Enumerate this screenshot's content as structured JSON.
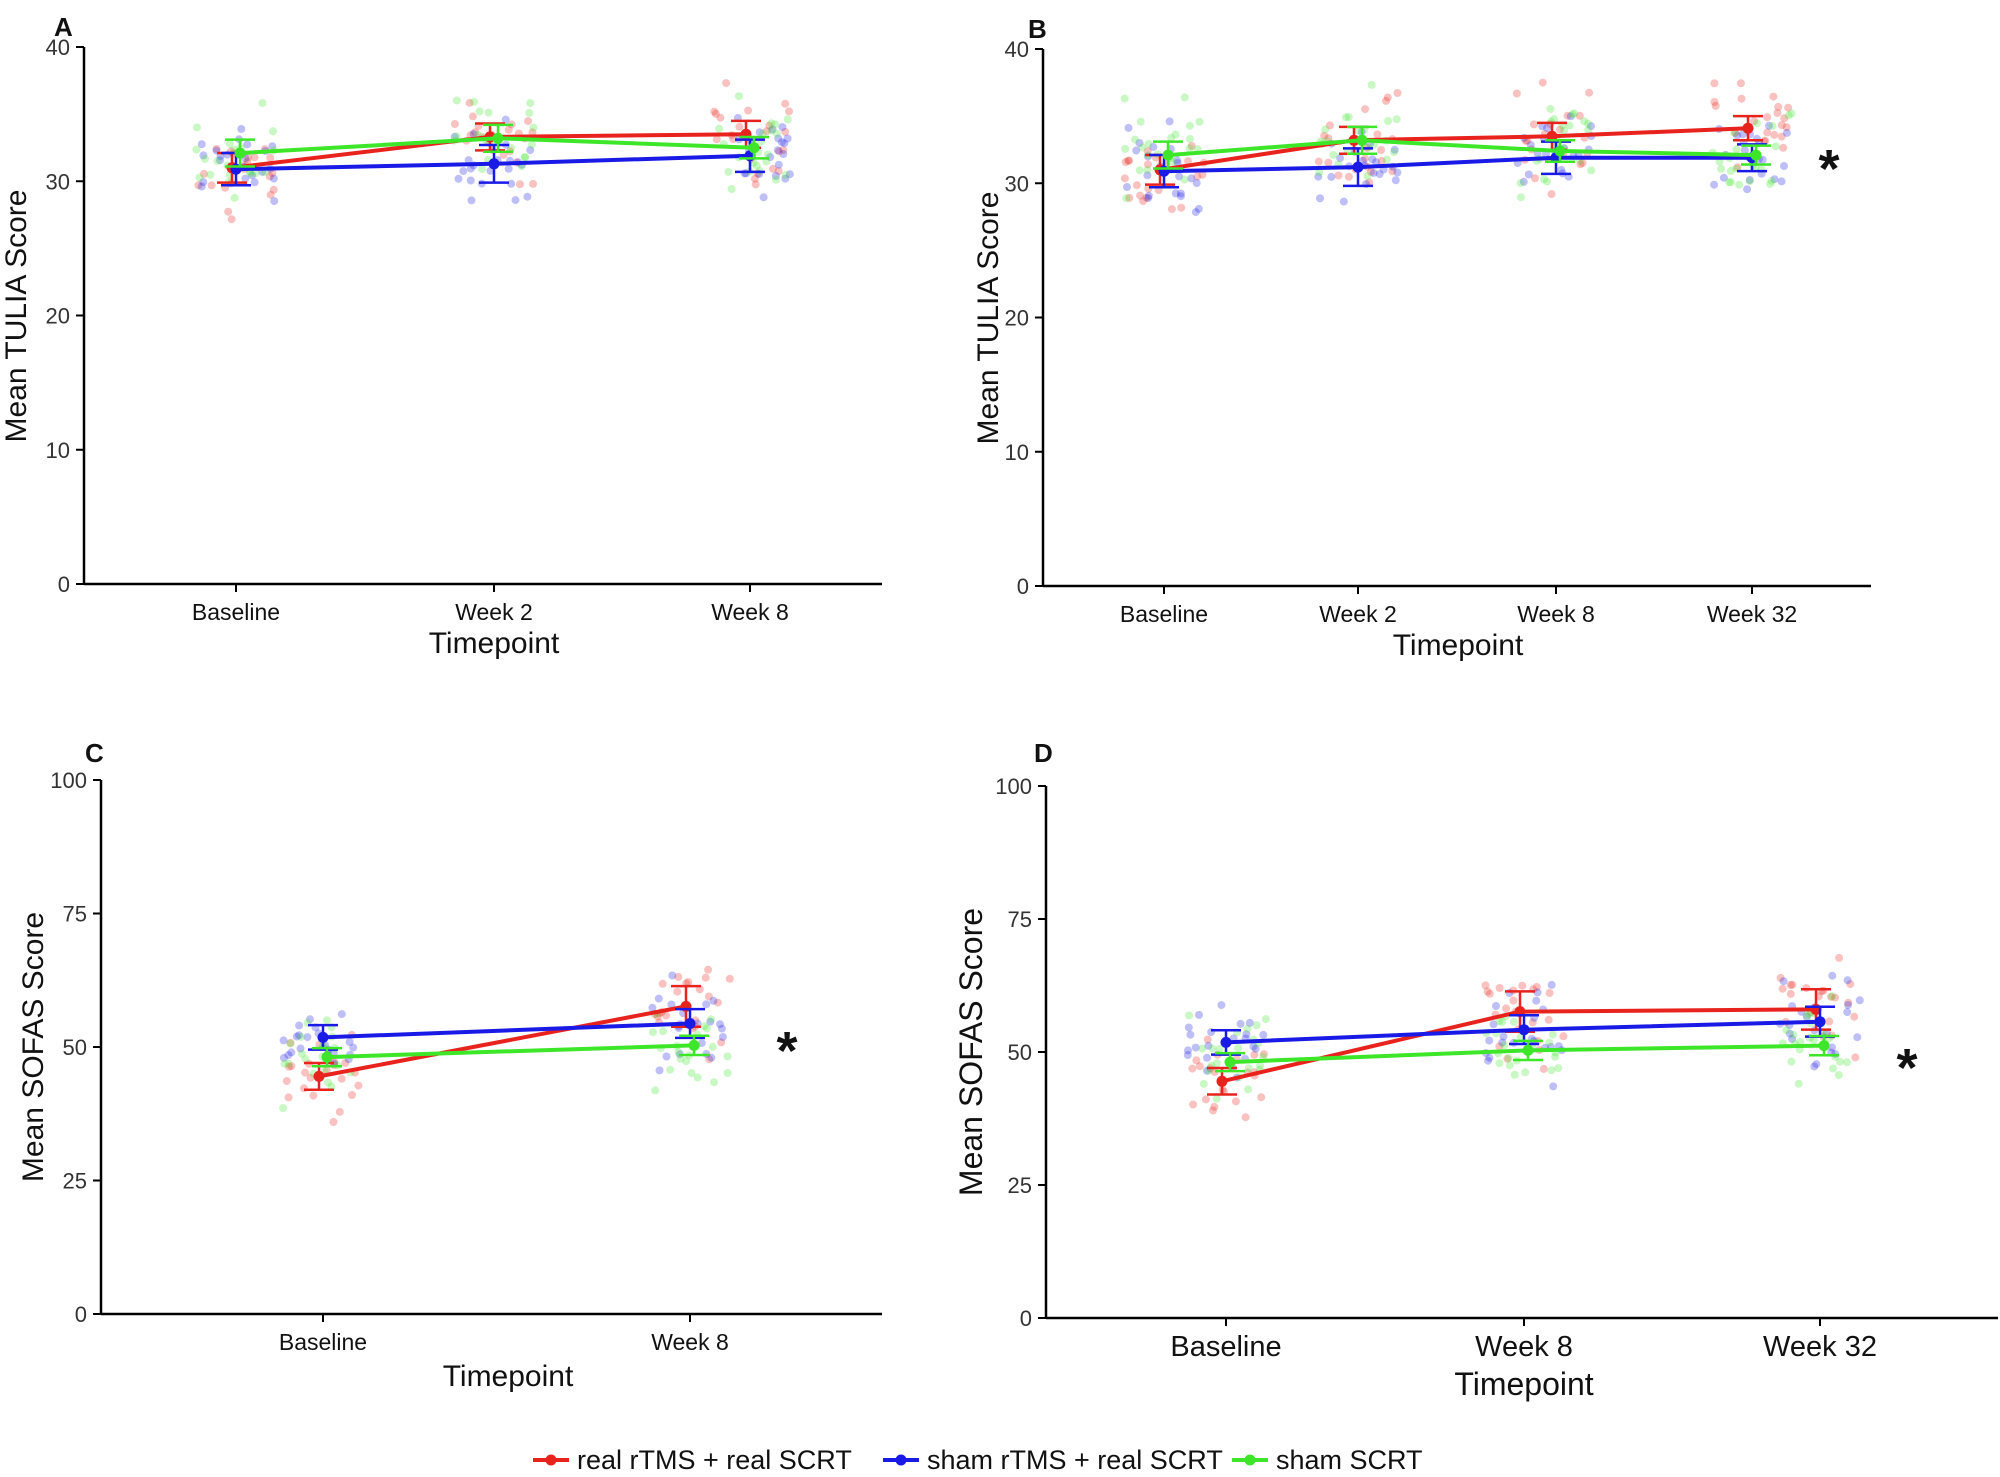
{
  "chart_data": [
    {
      "panel": "A",
      "type": "line",
      "xlabel": "Timepoint",
      "ylabel": "Mean TULIA Score",
      "ylim": [
        0,
        40
      ],
      "yticks": [
        "0",
        "10",
        "20",
        "30",
        "40"
      ],
      "categories": [
        "Baseline",
        "Week 2",
        "Week 8"
      ],
      "series": [
        {
          "name": "real rTMS + real SCRT",
          "color": "#e8231e",
          "values": [
            31.0,
            33.3,
            33.5
          ],
          "errors": [
            1.1,
            1.0,
            1.0
          ]
        },
        {
          "name": "sham rTMS + real SCRT",
          "color": "#1a1ae6",
          "values": [
            30.9,
            31.3,
            31.9
          ],
          "errors": [
            1.2,
            1.4,
            1.2
          ]
        },
        {
          "name": "sham SCRT",
          "color": "#3ee62a",
          "values": [
            32.1,
            33.2,
            32.5
          ],
          "errors": [
            1.0,
            1.0,
            0.8
          ]
        }
      ],
      "significance": ""
    },
    {
      "panel": "B",
      "type": "line",
      "xlabel": "Timepoint",
      "ylabel": "Mean TULIA Score",
      "ylim": [
        0,
        40
      ],
      "yticks": [
        "0",
        "10",
        "20",
        "30",
        "40"
      ],
      "categories": [
        "Baseline",
        "Week 2",
        "Week 8",
        "Week 32"
      ],
      "series": [
        {
          "name": "real rTMS + real SCRT",
          "color": "#e8231e",
          "values": [
            31.0,
            33.2,
            33.5,
            34.1
          ],
          "errors": [
            1.1,
            1.0,
            1.0,
            0.9
          ]
        },
        {
          "name": "sham rTMS + real SCRT",
          "color": "#1a1ae6",
          "values": [
            30.9,
            31.2,
            31.9,
            31.9
          ],
          "errors": [
            1.2,
            1.4,
            1.2,
            1.0
          ]
        },
        {
          "name": "sham SCRT",
          "color": "#3ee62a",
          "values": [
            32.1,
            33.2,
            32.4,
            32.1
          ],
          "errors": [
            1.0,
            1.0,
            0.8,
            0.7
          ]
        }
      ],
      "significance": "*"
    },
    {
      "panel": "C",
      "type": "line",
      "xlabel": "Timepoint",
      "ylabel": "Mean SOFAS Score",
      "ylim": [
        0,
        100
      ],
      "yticks": [
        "0",
        "25",
        "50",
        "75",
        "100"
      ],
      "categories": [
        "Baseline",
        "Week 8"
      ],
      "series": [
        {
          "name": "real rTMS + real SCRT",
          "color": "#e8231e",
          "values": [
            44.5,
            57.6
          ],
          "errors": [
            2.5,
            3.8
          ]
        },
        {
          "name": "sham rTMS + real SCRT",
          "color": "#1a1ae6",
          "values": [
            51.8,
            54.4
          ],
          "errors": [
            2.3,
            2.7
          ]
        },
        {
          "name": "sham SCRT",
          "color": "#3ee62a",
          "values": [
            48.1,
            50.3
          ],
          "errors": [
            1.7,
            1.8
          ]
        }
      ],
      "significance": "*"
    },
    {
      "panel": "D",
      "type": "line",
      "xlabel": "Timepoint",
      "ylabel": "Mean SOFAS Score",
      "ylim": [
        0,
        100
      ],
      "yticks": [
        "0",
        "25",
        "50",
        "75",
        "100"
      ],
      "categories": [
        "Baseline",
        "Week 8",
        "Week 32"
      ],
      "series": [
        {
          "name": "real rTMS + real SCRT",
          "color": "#e8231e",
          "values": [
            44.5,
            57.6,
            58.0
          ],
          "errors": [
            2.5,
            3.8,
            3.8
          ]
        },
        {
          "name": "sham rTMS + real SCRT",
          "color": "#1a1ae6",
          "values": [
            51.8,
            54.2,
            55.7
          ],
          "errors": [
            2.3,
            2.7,
            2.8
          ]
        },
        {
          "name": "sham SCRT",
          "color": "#3ee62a",
          "values": [
            48.1,
            50.3,
            51.2
          ],
          "errors": [
            1.7,
            1.8,
            1.8
          ]
        }
      ],
      "significance": "*"
    }
  ],
  "legend": {
    "items": [
      {
        "label": "real rTMS + real SCRT",
        "color": "#e8231e"
      },
      {
        "label": "sham rTMS + real SCRT",
        "color": "#1a1ae6"
      },
      {
        "label": "sham SCRT",
        "color": "#3ee62a"
      }
    ]
  }
}
